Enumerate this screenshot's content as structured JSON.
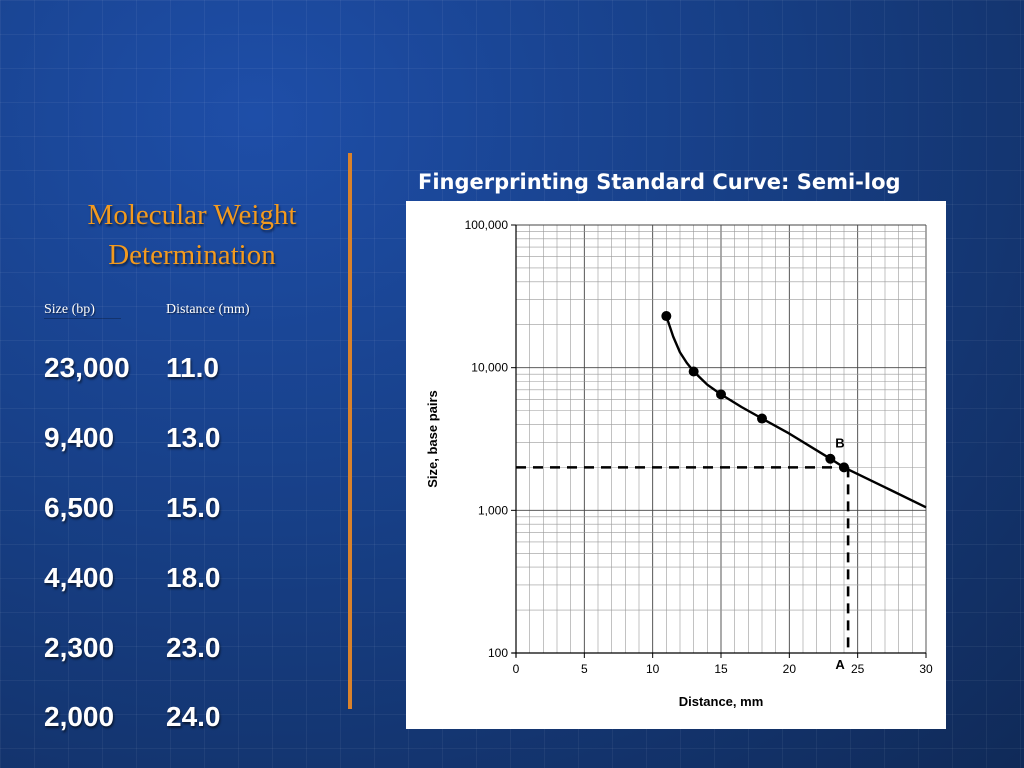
{
  "slide": {
    "title_line1": "Molecular Weight",
    "title_line2": "Determination"
  },
  "table": {
    "headers": [
      "Size (bp)",
      "Distance (mm)"
    ],
    "rows": [
      [
        "23,000",
        "11.0"
      ],
      [
        "9,400",
        "13.0"
      ],
      [
        "6,500",
        "15.0"
      ],
      [
        "4,400",
        "18.0"
      ],
      [
        "2,300",
        "23.0"
      ],
      [
        "2,000",
        "24.0"
      ]
    ]
  },
  "colors": {
    "title": "#f39a1e",
    "divider": "#d9822b",
    "text": "#ffffff",
    "background": "#163a78"
  },
  "chart_data": {
    "type": "scatter",
    "title": "Fingerprinting Standard Curve:  Semi-log",
    "xlabel": "Distance, mm",
    "ylabel": "Size, base pairs",
    "xlim": [
      0,
      30
    ],
    "ylim": [
      100,
      100000
    ],
    "yscale": "log",
    "grid": true,
    "x_ticks": [
      0,
      5,
      10,
      15,
      20,
      25,
      30
    ],
    "y_ticks": [
      100,
      1000,
      10000,
      100000
    ],
    "y_tick_labels": [
      "100",
      "1,000",
      "10,000",
      "100,000"
    ],
    "series": [
      {
        "x": [
          11,
          13,
          15,
          18,
          23,
          24
        ],
        "y": [
          23000,
          9400,
          6500,
          4400,
          2300,
          2000
        ]
      }
    ],
    "curve": {
      "x": [
        11,
        11.5,
        12,
        12.5,
        13,
        14,
        15,
        16.5,
        18,
        20,
        23,
        24,
        27,
        30
      ],
      "y": [
        23000,
        16500,
        12800,
        10800,
        9400,
        7600,
        6500,
        5300,
        4400,
        3450,
        2300,
        2000,
        1450,
        1050
      ]
    },
    "annotations": [
      {
        "label": "B",
        "x": 24,
        "y": 2000,
        "type": "horizontal-reference"
      },
      {
        "label": "A",
        "x": 24.3,
        "y": 100,
        "type": "vertical-reference"
      }
    ]
  }
}
